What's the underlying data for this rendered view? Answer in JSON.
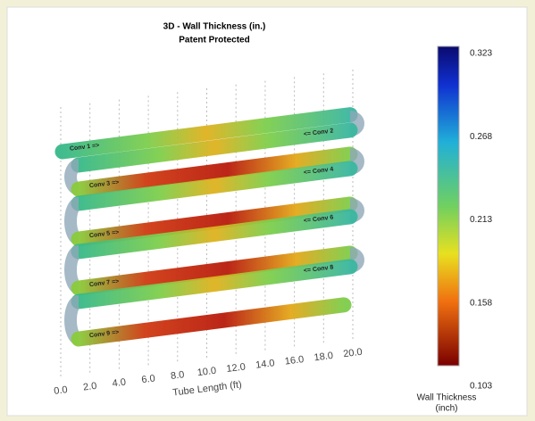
{
  "header": {
    "title": "3D - Wall Thickness (in.)",
    "subtitle": "Patent Protected"
  },
  "tube_labels": [
    "Conv 1 =>",
    "<= Conv 2",
    "Conv 3 =>",
    "<= Conv 4",
    "Conv 5 =>",
    "<= Conv 6",
    "Conv 7 =>",
    "<= Conv 8",
    "Conv 9 =>"
  ],
  "x_axis": {
    "label": "Tube Length (ft)",
    "ticks": [
      "0.0",
      "2.0",
      "4.0",
      "6.0",
      "8.0",
      "10.0",
      "12.0",
      "14.0",
      "16.0",
      "18.0",
      "20.0"
    ]
  },
  "colorbar": {
    "ticks": [
      "0.323",
      "0.268",
      "0.213",
      "0.158",
      "0.103"
    ],
    "title": "Wall Thickness",
    "unit": "(inch)"
  }
}
